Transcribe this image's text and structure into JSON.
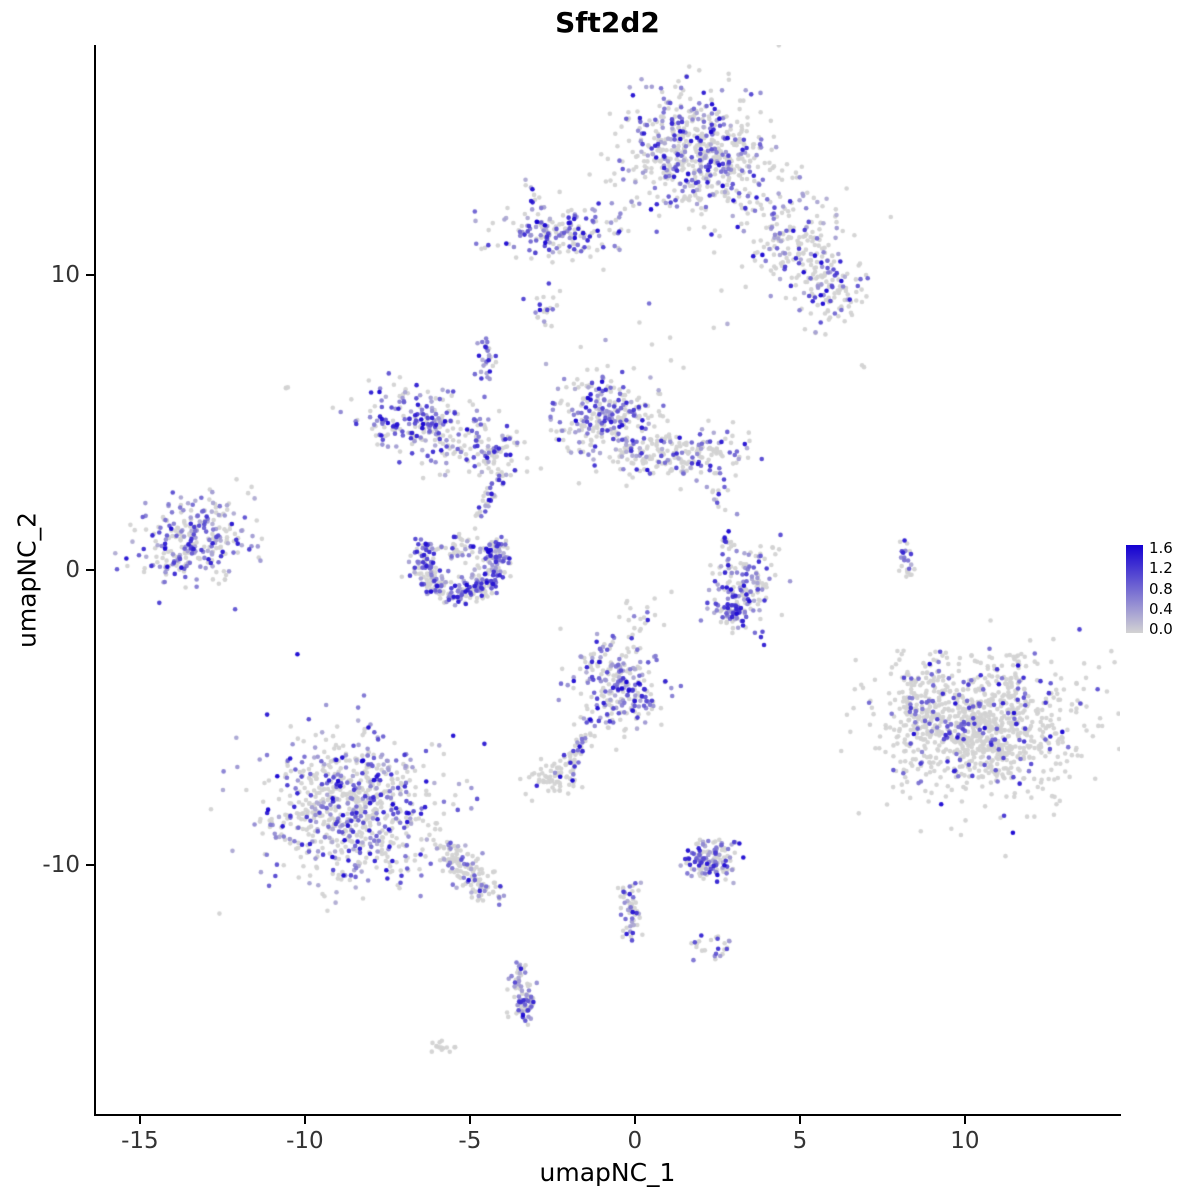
{
  "chart_data": {
    "type": "scatter",
    "title": "Sft2d2",
    "xlabel": "umapNC_1",
    "ylabel": "umapNC_2",
    "xlim": [
      -16.36,
      14.7
    ],
    "ylim": [
      -18.47,
      17.8
    ],
    "xticks": [
      -15,
      -10,
      -5,
      0,
      5,
      10
    ],
    "yticks": [
      -10,
      0,
      10
    ],
    "grid": false,
    "legend": {
      "position": "right",
      "ticks": [
        "1.6",
        "1.2",
        "0.8",
        "0.4",
        "0.0"
      ],
      "values_range": [
        0.0,
        1.6
      ],
      "low_color": "#D3D3D3",
      "high_color": "#1400D2"
    },
    "point_radius": 2.3,
    "seed": 20240601,
    "clusters": [
      {
        "s": "g",
        "x": 1.95,
        "y": 14.2,
        "sx": 1.15,
        "sy": 1.05,
        "n": 620,
        "f": 0.42
      },
      {
        "s": "g",
        "x": 4.8,
        "y": 11.3,
        "sx": 0.85,
        "sy": 0.85,
        "n": 190,
        "f": 0.28
      },
      {
        "s": "g",
        "x": 5.9,
        "y": 9.5,
        "sx": 0.55,
        "sy": 0.65,
        "n": 110,
        "f": 0.35
      },
      {
        "s": "g",
        "x": -2.3,
        "y": 11.4,
        "sx": 1.05,
        "sy": 0.42,
        "n": 170,
        "f": 0.55
      },
      {
        "s": "line",
        "x1": -2.9,
        "y1": 12.4,
        "x2": -3.3,
        "y2": 13.1,
        "sd": 0.1,
        "n": 10,
        "f": 0.4
      },
      {
        "s": "g",
        "x": -2.8,
        "y": 8.9,
        "sx": 0.22,
        "sy": 0.3,
        "n": 22,
        "f": 0.5
      },
      {
        "s": "line",
        "x1": -4.5,
        "y1": 7.9,
        "x2": -4.4,
        "y2": 6.3,
        "sd": 0.14,
        "n": 30,
        "f": 0.6
      },
      {
        "s": "g",
        "x": -6.4,
        "y": 4.9,
        "sx": 1.0,
        "sy": 0.62,
        "n": 240,
        "f": 0.6,
        "rot": -15
      },
      {
        "s": "g",
        "x": -4.3,
        "y": 4.1,
        "sx": 0.6,
        "sy": 0.4,
        "n": 80,
        "f": 0.35
      },
      {
        "s": "g",
        "x": -0.9,
        "y": 5.3,
        "sx": 0.75,
        "sy": 0.72,
        "n": 260,
        "f": 0.5
      },
      {
        "s": "g",
        "x": 1.3,
        "y": 3.9,
        "sx": 1.05,
        "sy": 0.45,
        "n": 210,
        "f": 0.3
      },
      {
        "s": "g",
        "x": 1.2,
        "y": 8.6,
        "sx": 1.3,
        "sy": 0.9,
        "n": 12,
        "f": 0.25
      },
      {
        "s": "g",
        "x": -13.4,
        "y": 1.0,
        "sx": 0.95,
        "sy": 0.72,
        "n": 280,
        "f": 0.55,
        "rot": 20
      },
      {
        "s": "arc",
        "x": -5.3,
        "y": 0.4,
        "r": 1.15,
        "a0": 150,
        "a1": 390,
        "sd": 0.22,
        "n": 330,
        "f": 0.62
      },
      {
        "s": "g",
        "x": -5.3,
        "y": 0.8,
        "sx": 0.35,
        "sy": 0.3,
        "n": 40,
        "f": 0.3
      },
      {
        "s": "line",
        "x1": -4.0,
        "y1": 3.3,
        "x2": -4.8,
        "y2": 1.8,
        "sd": 0.12,
        "n": 35,
        "f": 0.5
      },
      {
        "s": "g",
        "x": 3.3,
        "y": -0.5,
        "sx": 0.55,
        "sy": 0.7,
        "n": 150,
        "f": 0.5
      },
      {
        "s": "g",
        "x": 3.0,
        "y": -1.4,
        "sx": 0.32,
        "sy": 0.2,
        "n": 55,
        "f": 0.7
      },
      {
        "s": "line",
        "x1": 2.5,
        "y1": 3.0,
        "x2": 2.9,
        "y2": 0.6,
        "sd": 0.18,
        "n": 22,
        "f": 0.3
      },
      {
        "s": "line",
        "x1": 0.5,
        "y1": -0.8,
        "x2": 0.2,
        "y2": -2.6,
        "sd": 0.25,
        "n": 18,
        "f": 0.3
      },
      {
        "s": "line",
        "x1": 8.2,
        "y1": 1.0,
        "x2": 8.25,
        "y2": -0.2,
        "sd": 0.1,
        "n": 25,
        "f": 0.4
      },
      {
        "s": "g",
        "x": 10.6,
        "y": -5.3,
        "sx": 1.45,
        "sy": 1.2,
        "n": 950,
        "f": 0.12,
        "lo": 0.45,
        "hi": 1.0
      },
      {
        "s": "g",
        "x": 8.7,
        "y": -4.7,
        "sx": 0.5,
        "sy": 0.8,
        "n": 120,
        "f": 0.18,
        "lo": 0.4,
        "hi": 1.0
      },
      {
        "s": "g",
        "x": -0.5,
        "y": -3.9,
        "sx": 0.68,
        "sy": 0.85,
        "n": 260,
        "f": 0.55
      },
      {
        "s": "line",
        "x1": -1.4,
        "y1": -5.5,
        "x2": -2.0,
        "y2": -6.6,
        "sd": 0.12,
        "n": 40,
        "f": 0.35
      },
      {
        "s": "g",
        "x": -2.5,
        "y": -7.0,
        "sx": 0.4,
        "sy": 0.3,
        "n": 70,
        "f": 0.08
      },
      {
        "s": "g",
        "x": -8.6,
        "y": -8.0,
        "sx": 1.35,
        "sy": 1.25,
        "n": 760,
        "f": 0.4
      },
      {
        "s": "line",
        "x1": -5.8,
        "y1": -9.4,
        "x2": -4.4,
        "y2": -10.9,
        "sd": 0.3,
        "n": 140,
        "f": 0.25
      },
      {
        "s": "g",
        "x": 2.3,
        "y": -9.8,
        "sx": 0.42,
        "sy": 0.3,
        "n": 140,
        "f": 0.55
      },
      {
        "s": "line",
        "x1": -0.2,
        "y1": -10.8,
        "x2": -0.1,
        "y2": -12.5,
        "sd": 0.15,
        "n": 55,
        "f": 0.45
      },
      {
        "s": "g",
        "x": 2.3,
        "y": -12.7,
        "sx": 0.28,
        "sy": 0.25,
        "n": 25,
        "f": 0.4
      },
      {
        "s": "line",
        "x1": -3.5,
        "y1": -13.5,
        "x2": -3.3,
        "y2": -15.3,
        "sd": 0.18,
        "n": 85,
        "f": 0.55
      },
      {
        "s": "g",
        "x": -5.9,
        "y": -16.1,
        "sx": 0.28,
        "sy": 0.12,
        "n": 14,
        "f": 0.15
      },
      {
        "s": "g",
        "x": -10.6,
        "y": 6.3,
        "sx": 0.15,
        "sy": 0.1,
        "n": 3,
        "f": 0
      },
      {
        "s": "g",
        "x": 6.9,
        "y": 6.9,
        "sx": 0.05,
        "sy": 0.05,
        "n": 2,
        "f": 0
      }
    ]
  }
}
